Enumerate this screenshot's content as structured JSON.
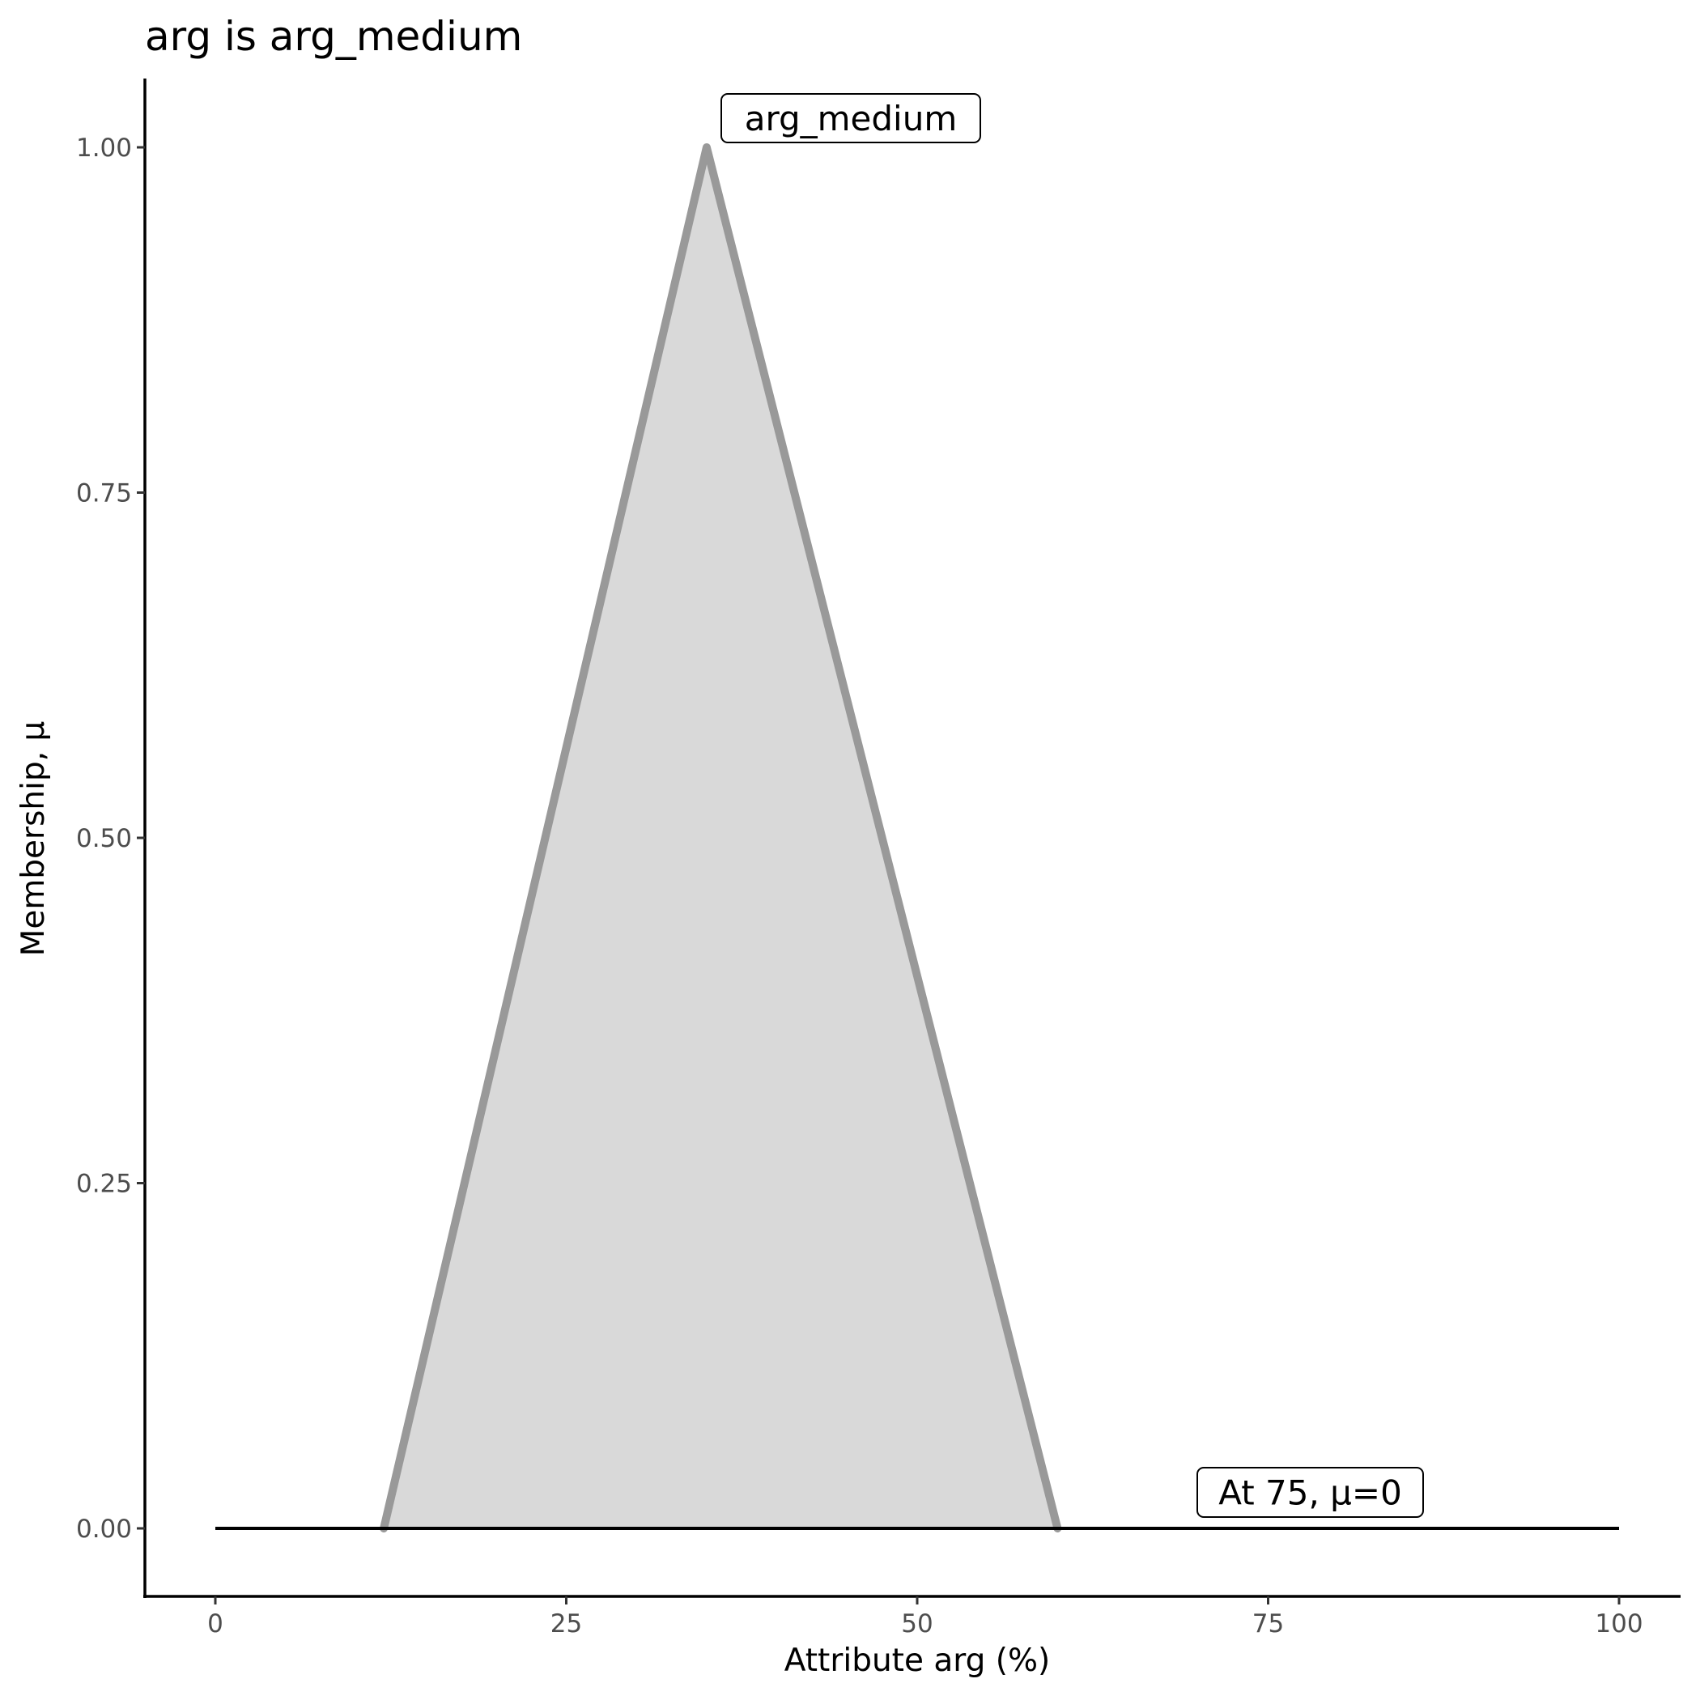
{
  "chart_data": {
    "type": "area",
    "title": "arg is arg_medium",
    "xlabel": "Attribute arg (%)",
    "ylabel": "Membership, μ",
    "xlim": [
      -5,
      105
    ],
    "ylim": [
      -0.05,
      1.05
    ],
    "xticks": [
      0,
      25,
      50,
      75,
      100
    ],
    "xtick_labels": [
      "0",
      "25",
      "50",
      "75",
      "100"
    ],
    "yticks": [
      0,
      0.25,
      0.5,
      0.75,
      1
    ],
    "ytick_labels": [
      "0.00",
      "0.25",
      "0.50",
      "0.75",
      "1.00"
    ],
    "grid": false,
    "series": [
      {
        "x": [
          12,
          35,
          60
        ],
        "y": [
          0,
          1,
          0
        ],
        "line_color": "#999999",
        "fill_color": "#d9d9d9"
      }
    ],
    "baseline": {
      "x": [
        0,
        100
      ],
      "y": [
        0,
        0
      ],
      "color": "#000000"
    },
    "annotations": [
      {
        "text": "arg_medium",
        "x": 35,
        "y": 1
      },
      {
        "text": "At 75, μ=0",
        "x": 75,
        "y": 0
      }
    ]
  }
}
